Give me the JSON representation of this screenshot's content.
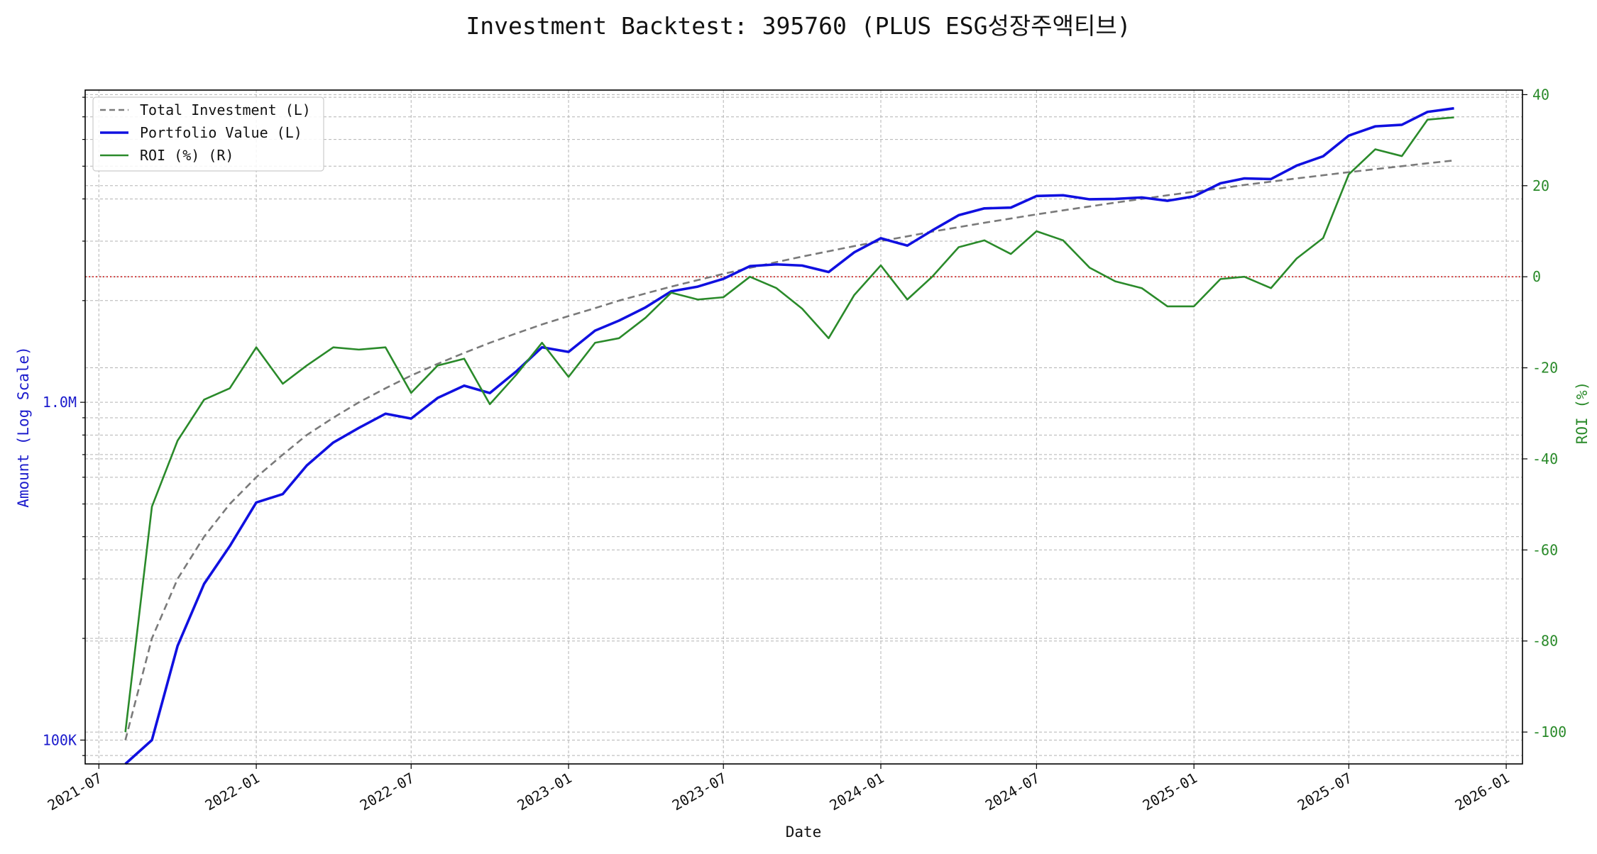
{
  "chart_data": {
    "type": "line",
    "title": "Investment Backtest: 395760 (PLUS ESG성장주액티브)",
    "xlabel": "Date",
    "ylabel_left": "Amount (Log Scale)",
    "ylabel_right": "ROI (%)",
    "y_left_scale": "log",
    "y_left_ticks": [
      {
        "value": 100000,
        "label": "100K"
      },
      {
        "value": 1000000,
        "label": "1.0M"
      }
    ],
    "y_left_range": [
      85000,
      8400000
    ],
    "y_right_ticks": [
      40,
      20,
      0,
      -20,
      -40,
      -60,
      -80,
      -100
    ],
    "y_right_range": [
      -107,
      41
    ],
    "x_range": [
      "2021-06-15",
      "2026-01-20"
    ],
    "x_ticks": [
      "2021-07",
      "2022-01",
      "2022-07",
      "2023-01",
      "2023-07",
      "2024-01",
      "2024-07",
      "2025-01",
      "2025-07",
      "2026-01"
    ],
    "grid": true,
    "legend_position": "top-left",
    "reference_line": {
      "value": 0,
      "axis": "right",
      "style": "dotted",
      "color": "#cc2222"
    },
    "colors": {
      "total_investment": "#7a7a7a",
      "portfolio_value": "#1010e0",
      "roi": "#2a8a2a",
      "left_axis": "#1a1acc",
      "right_axis": "#2a8a2a"
    },
    "x": [
      "2021-08-01",
      "2021-09-01",
      "2021-10-01",
      "2021-11-01",
      "2021-12-01",
      "2022-01-01",
      "2022-02-01",
      "2022-03-01",
      "2022-04-01",
      "2022-05-01",
      "2022-06-01",
      "2022-07-01",
      "2022-08-01",
      "2022-09-01",
      "2022-10-01",
      "2022-11-01",
      "2022-12-01",
      "2023-01-01",
      "2023-02-01",
      "2023-03-01",
      "2023-04-01",
      "2023-05-01",
      "2023-06-01",
      "2023-07-01",
      "2023-08-01",
      "2023-09-01",
      "2023-10-01",
      "2023-11-01",
      "2023-12-01",
      "2024-01-01",
      "2024-02-01",
      "2024-03-01",
      "2024-04-01",
      "2024-05-01",
      "2024-06-01",
      "2024-07-01",
      "2024-08-01",
      "2024-09-01",
      "2024-10-01",
      "2024-11-01",
      "2024-12-01",
      "2025-01-01",
      "2025-02-01",
      "2025-03-01",
      "2025-04-01",
      "2025-05-01",
      "2025-06-01",
      "2025-07-01",
      "2025-08-01",
      "2025-09-01",
      "2025-10-01",
      "2025-11-01"
    ],
    "series": [
      {
        "name": "Total Investment (L)",
        "axis": "left",
        "style": "dashed",
        "values": [
          100000,
          200000,
          300000,
          400000,
          500000,
          600000,
          700000,
          800000,
          900000,
          1000000,
          1100000,
          1200000,
          1300000,
          1400000,
          1500000,
          1600000,
          1700000,
          1800000,
          1900000,
          2000000,
          2100000,
          2200000,
          2300000,
          2400000,
          2500000,
          2600000,
          2700000,
          2800000,
          2900000,
          3000000,
          3100000,
          3200000,
          3300000,
          3400000,
          3500000,
          3600000,
          3700000,
          3800000,
          3900000,
          4000000,
          4100000,
          4200000,
          4300000,
          4400000,
          4500000,
          4600000,
          4700000,
          4800000,
          4900000,
          5000000,
          5100000,
          5200000
        ]
      },
      {
        "name": "Portfolio Value (L)",
        "axis": "left",
        "style": "solid",
        "values": [
          null,
          100000,
          190000,
          290000,
          375000,
          505000,
          535000,
          650000,
          760000,
          840000,
          925000,
          895000,
          1030000,
          1120000,
          1065000,
          1235000,
          1455000,
          1410000,
          1630000,
          1745000,
          1910000,
          2130000,
          2200000,
          2320000,
          2530000,
          2560000,
          2540000,
          2430000,
          2780000,
          3060000,
          2910000,
          3225000,
          3580000,
          3750000,
          3770000,
          4080000,
          4100000,
          3990000,
          4000000,
          4040000,
          3950000,
          4070000,
          4450000,
          4600000,
          4580000,
          5020000,
          5350000,
          6160000,
          6560000,
          6630000,
          7240000,
          7420000
        ]
      },
      {
        "name": "ROI (%) (R)",
        "axis": "right",
        "style": "solid",
        "values": [
          -100,
          -50.5,
          -36,
          -27,
          -24.5,
          -15.5,
          -23.5,
          -19.5,
          -15.5,
          -16,
          -15.5,
          -25.5,
          -19.5,
          -18,
          -28,
          -21.5,
          -14.5,
          -22,
          -14.5,
          -13.5,
          -9,
          -3.5,
          -5,
          -4.5,
          0,
          -2.5,
          -7,
          -13.5,
          -4,
          2.5,
          -5,
          0,
          6.5,
          8,
          5,
          10,
          8,
          2,
          -1,
          -2.5,
          -6.5,
          -6.5,
          -0.5,
          0,
          -2.5,
          4,
          8.5,
          22.5,
          28,
          26.5,
          34.5,
          35
        ]
      }
    ]
  }
}
